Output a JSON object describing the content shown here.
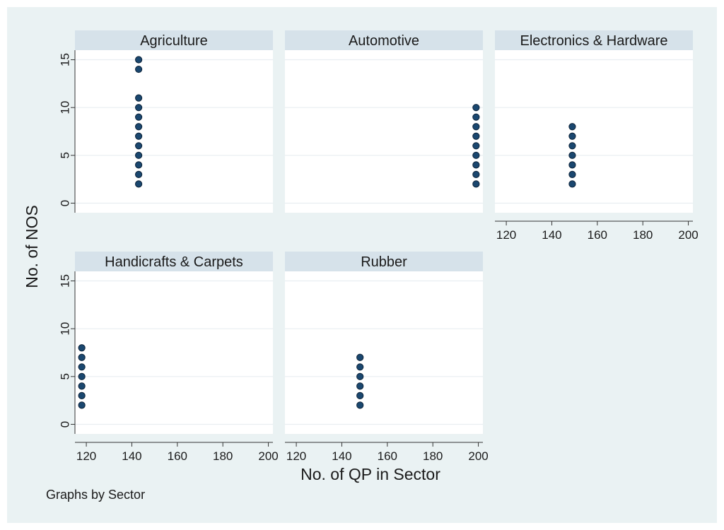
{
  "chart_data": {
    "type": "scatter",
    "xlabel": "No. of QP in Sector",
    "ylabel": "No. of NOS",
    "note": "Graphs by Sector",
    "xlim": [
      115,
      202
    ],
    "ylim": [
      -1,
      16
    ],
    "xticks": [
      120,
      140,
      160,
      180,
      200
    ],
    "yticks": [
      0,
      5,
      10,
      15
    ],
    "grid": true,
    "colors": {
      "outer_background": "#eaf2f3",
      "header_background": "#d6e2ea",
      "plot_background": "#ffffff",
      "gridline": "#e9eef1",
      "marker_fill": "#1a476f",
      "marker_stroke": "#0c2238"
    },
    "panels": [
      {
        "title": "Agriculture",
        "x": [
          143,
          143,
          143,
          143,
          143,
          143,
          143,
          143,
          143,
          143,
          143,
          143
        ],
        "y": [
          2,
          3,
          4,
          5,
          6,
          7,
          8,
          9,
          10,
          11,
          14,
          15
        ]
      },
      {
        "title": "Automotive",
        "x": [
          199,
          199,
          199,
          199,
          199,
          199,
          199,
          199,
          199
        ],
        "y": [
          2,
          3,
          4,
          5,
          6,
          7,
          8,
          9,
          10
        ]
      },
      {
        "title": "Electronics & Hardware",
        "x": [
          149,
          149,
          149,
          149,
          149,
          149,
          149
        ],
        "y": [
          2,
          3,
          4,
          5,
          6,
          7,
          8
        ]
      },
      {
        "title": "Handicrafts & Carpets",
        "x": [
          118,
          118,
          118,
          118,
          118,
          118,
          118
        ],
        "y": [
          2,
          3,
          4,
          5,
          6,
          7,
          8
        ]
      },
      {
        "title": "Rubber",
        "x": [
          148,
          148,
          148,
          148,
          148,
          148
        ],
        "y": [
          2,
          3,
          4,
          5,
          6,
          7
        ]
      }
    ]
  }
}
